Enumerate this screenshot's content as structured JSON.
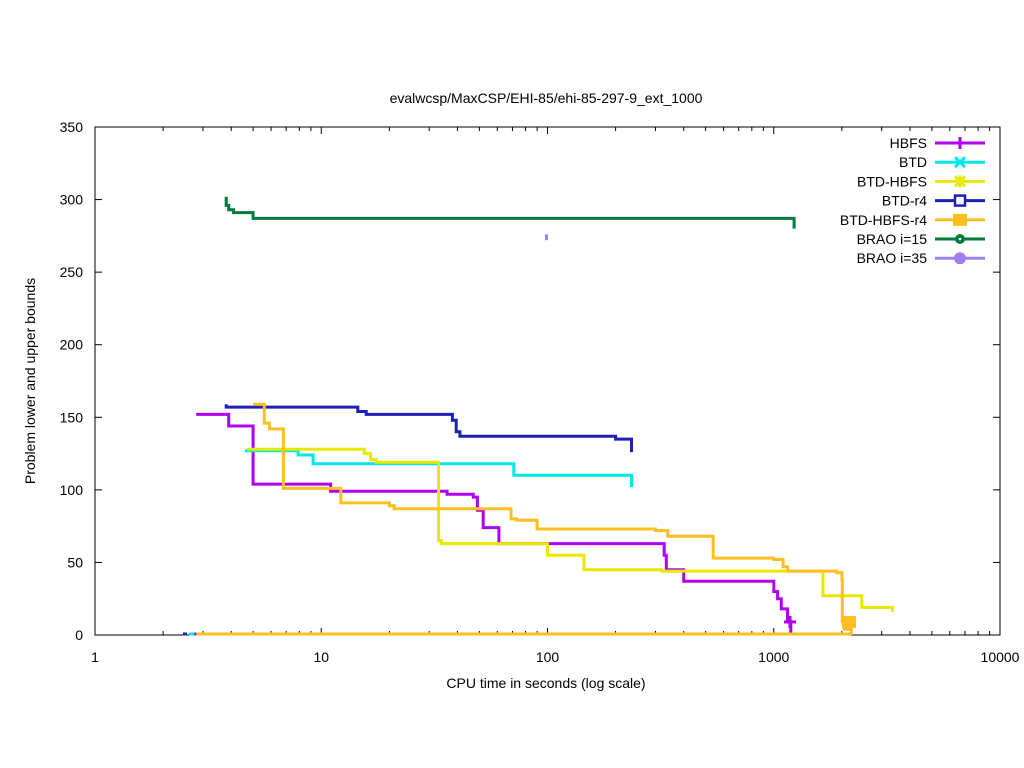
{
  "chart_data": {
    "type": "line",
    "title": "evalwcsp/MaxCSP/EHI-85/ehi-85-297-9_ext_1000",
    "xlabel": "CPU time in seconds (log scale)",
    "ylabel": "Problem lower and upper bounds",
    "xscale": "log",
    "xlim": [
      1,
      10000
    ],
    "ylim": [
      0,
      350
    ],
    "xticks": [
      1,
      10,
      100,
      1000,
      10000
    ],
    "xtick_labels": [
      "1",
      "10",
      "100",
      "1000",
      "10000"
    ],
    "yticks": [
      0,
      50,
      100,
      150,
      200,
      250,
      300,
      350
    ],
    "ytick_labels": [
      "0",
      "50",
      "100",
      "150",
      "200",
      "250",
      "300",
      "350"
    ],
    "grid": false,
    "legend_position": "top-right",
    "series": [
      {
        "name": "HBFS",
        "color": "#b000f0",
        "marker": "plus",
        "upper": [
          [
            2.8,
            152
          ],
          [
            3.9,
            152
          ],
          [
            3.9,
            144
          ],
          [
            5.0,
            144
          ],
          [
            5.0,
            104
          ],
          [
            11,
            104
          ],
          [
            11,
            99
          ],
          [
            36,
            99
          ],
          [
            36,
            97
          ],
          [
            47,
            97
          ],
          [
            47,
            95
          ],
          [
            49,
            95
          ],
          [
            49,
            86
          ],
          [
            52,
            86
          ],
          [
            52,
            74
          ],
          [
            61,
            74
          ],
          [
            61,
            63
          ],
          [
            328,
            63
          ],
          [
            328,
            55
          ],
          [
            335,
            55
          ],
          [
            335,
            45
          ],
          [
            400,
            45
          ],
          [
            400,
            37
          ],
          [
            1000,
            37
          ],
          [
            1000,
            30
          ],
          [
            1040,
            30
          ],
          [
            1040,
            25
          ],
          [
            1080,
            25
          ],
          [
            1080,
            18
          ],
          [
            1150,
            18
          ],
          [
            1150,
            9
          ],
          [
            1190,
            9
          ],
          [
            1190,
            0
          ]
        ],
        "lower": [
          [
            2.6,
            0
          ],
          [
            2.9,
            0
          ]
        ],
        "markers": [
          [
            1180,
            9
          ]
        ]
      },
      {
        "name": "BTD",
        "color": "#00e8e8",
        "marker": "x",
        "upper": [
          [
            4.6,
            127
          ],
          [
            7.9,
            127
          ],
          [
            7.9,
            124
          ],
          [
            9.2,
            124
          ],
          [
            9.2,
            118
          ],
          [
            71,
            118
          ],
          [
            71,
            110
          ],
          [
            235,
            110
          ],
          [
            235,
            102
          ]
        ],
        "lower": [
          [
            2.6,
            0
          ],
          [
            2.75,
            0
          ]
        ],
        "markers": []
      },
      {
        "name": "BTD-HBFS",
        "color": "#e8e800",
        "marker": "star",
        "upper": [
          [
            4.7,
            128
          ],
          [
            15.5,
            128
          ],
          [
            15.5,
            125
          ],
          [
            16.5,
            125
          ],
          [
            16.5,
            121
          ],
          [
            17.5,
            121
          ],
          [
            17.5,
            119
          ],
          [
            19,
            119
          ],
          [
            19,
            119
          ],
          [
            33,
            119
          ],
          [
            33,
            65
          ],
          [
            34,
            65
          ],
          [
            34,
            63
          ],
          [
            100,
            63
          ],
          [
            100,
            55
          ],
          [
            145,
            55
          ],
          [
            145,
            45
          ],
          [
            320,
            45
          ],
          [
            320,
            44
          ],
          [
            1650,
            44
          ],
          [
            1650,
            27
          ],
          [
            2450,
            27
          ],
          [
            2450,
            19
          ],
          [
            3350,
            19
          ],
          [
            3350,
            16
          ]
        ],
        "lower": [],
        "markers": []
      },
      {
        "name": "BTD-r4",
        "color": "#1e1eb8",
        "marker": "square-open",
        "upper": [
          [
            3.8,
            159
          ],
          [
            3.8,
            157
          ],
          [
            14.5,
            157
          ],
          [
            14.5,
            154
          ],
          [
            15.8,
            154
          ],
          [
            15.8,
            152
          ],
          [
            38,
            152
          ],
          [
            38,
            148
          ],
          [
            39.5,
            148
          ],
          [
            39.5,
            140
          ],
          [
            41,
            140
          ],
          [
            41,
            137
          ],
          [
            200,
            137
          ],
          [
            200,
            135
          ],
          [
            235,
            135
          ],
          [
            235,
            126
          ]
        ],
        "lower": [
          [
            2.45,
            0
          ],
          [
            2.55,
            0
          ]
        ],
        "markers": []
      },
      {
        "name": "BTD-HBFS-r4",
        "color": "#ffbf20",
        "marker": "square-filled",
        "upper": [
          [
            5.0,
            159
          ],
          [
            5.6,
            159
          ],
          [
            5.6,
            146
          ],
          [
            5.9,
            146
          ],
          [
            5.9,
            142
          ],
          [
            6.8,
            142
          ],
          [
            6.8,
            101
          ],
          [
            12.2,
            101
          ],
          [
            12.2,
            91
          ],
          [
            20,
            91
          ],
          [
            20,
            89
          ],
          [
            21,
            89
          ],
          [
            21,
            87
          ],
          [
            69,
            87
          ],
          [
            69,
            80
          ],
          [
            73,
            80
          ],
          [
            73,
            79
          ],
          [
            90,
            79
          ],
          [
            90,
            73
          ],
          [
            300,
            73
          ],
          [
            300,
            72
          ],
          [
            340,
            72
          ],
          [
            340,
            68
          ],
          [
            540,
            68
          ],
          [
            540,
            53
          ],
          [
            1000,
            53
          ],
          [
            1000,
            52
          ],
          [
            1100,
            52
          ],
          [
            1100,
            47
          ],
          [
            1150,
            47
          ],
          [
            1150,
            44
          ],
          [
            1900,
            44
          ],
          [
            1900,
            43
          ],
          [
            2000,
            43
          ],
          [
            2000,
            38
          ],
          [
            2010,
            38
          ],
          [
            2010,
            9
          ],
          [
            2050,
            9
          ],
          [
            2050,
            4
          ],
          [
            2200,
            4
          ],
          [
            2200,
            0
          ]
        ],
        "lower": [
          [
            2.8,
            0
          ],
          [
            2200,
            0
          ]
        ],
        "markers": [
          [
            2150,
            9
          ]
        ]
      },
      {
        "name": "BRAO i=15",
        "color": "#007a3d",
        "marker": "circle-dot",
        "upper": [
          [
            3.8,
            302
          ],
          [
            3.8,
            296
          ],
          [
            3.9,
            296
          ],
          [
            3.9,
            293
          ],
          [
            4.1,
            293
          ],
          [
            4.1,
            291
          ],
          [
            5.0,
            291
          ],
          [
            5.0,
            287
          ],
          [
            1230,
            287
          ],
          [
            1230,
            280
          ]
        ],
        "lower": [],
        "markers": []
      },
      {
        "name": "BRAO i=35",
        "color": "#a080f0",
        "marker": "circle-filled",
        "upper": [
          [
            99,
            276
          ],
          [
            99,
            272
          ]
        ],
        "lower": [],
        "markers": []
      }
    ]
  }
}
